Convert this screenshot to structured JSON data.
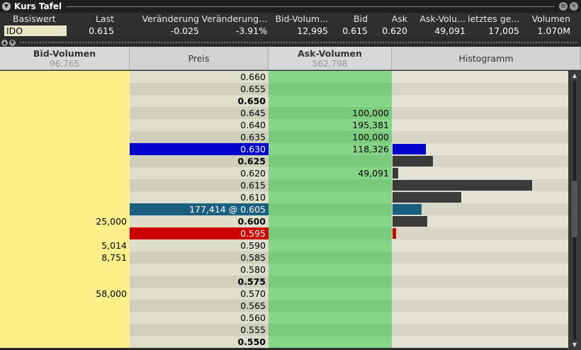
{
  "window": {
    "title": "Kurs Tafel"
  },
  "quote": {
    "headers": [
      "Basiswert",
      "Last",
      "Veränderung",
      "Veränderung...",
      "Bid-Volum...",
      "Bid",
      "Ask",
      "Ask-Volu...",
      "letztes ge...",
      "Volumen"
    ],
    "values": [
      "IDO",
      "0.615",
      "-0.025",
      "-3.91%",
      "12,995",
      "0.615",
      "0.620",
      "49,091",
      "17,005",
      "1.070M"
    ]
  },
  "table": {
    "bid_header": "Bid-Volumen",
    "bid_total": "96,765",
    "price_header": "Preis",
    "ask_header": "Ask-Volumen",
    "ask_total": "562,798",
    "hist_header": "Histogramm"
  },
  "colors": {
    "bid": "#fdf08a",
    "price_a": "#dedecc",
    "price_b": "#cfcfbd",
    "ask_a": "#86d488",
    "ask_b": "#7acb7c",
    "hist_a": "#e4e4d6",
    "hist_b": "#d6d6c8",
    "blue": "#0000cc",
    "teal": "#1a5f80",
    "red": "#cc0000",
    "dark_bar": "#3a3a3a"
  },
  "rows": [
    {
      "bid": "",
      "price": "0.660",
      "ask": "",
      "bold": false,
      "hl": "",
      "hist": 0,
      "bar": ""
    },
    {
      "bid": "",
      "price": "0.655",
      "ask": "",
      "bold": false,
      "hl": "",
      "hist": 0,
      "bar": ""
    },
    {
      "bid": "",
      "price": "0.650",
      "ask": "",
      "bold": true,
      "hl": "",
      "hist": 0,
      "bar": ""
    },
    {
      "bid": "",
      "price": "0.645",
      "ask": "100,000",
      "bold": false,
      "hl": "",
      "hist": 0,
      "bar": ""
    },
    {
      "bid": "",
      "price": "0.640",
      "ask": "195,381",
      "bold": false,
      "hl": "",
      "hist": 0,
      "bar": ""
    },
    {
      "bid": "",
      "price": "0.635",
      "ask": "100,000",
      "bold": false,
      "hl": "",
      "hist": 0,
      "bar": ""
    },
    {
      "bid": "",
      "price": "0.630",
      "ask": "118,326",
      "bold": false,
      "hl": "blue",
      "hist": 0.24,
      "bar": "blue"
    },
    {
      "bid": "",
      "price": "0.625",
      "ask": "",
      "bold": true,
      "hl": "",
      "hist": 0.29,
      "bar": "dark"
    },
    {
      "bid": "",
      "price": "0.620",
      "ask": "49,091",
      "bold": false,
      "hl": "",
      "hist": 0.04,
      "bar": "dark"
    },
    {
      "bid": "",
      "price": "0.615",
      "ask": "",
      "bold": false,
      "hl": "",
      "hist": 1.0,
      "bar": "dark"
    },
    {
      "bid": "",
      "price": "0.610",
      "ask": "",
      "bold": false,
      "hl": "",
      "hist": 0.49,
      "bar": "dark"
    },
    {
      "bid": "",
      "price": "177,414 @ 0.605",
      "ask": "",
      "bold": false,
      "hl": "teal",
      "hist": 0.21,
      "bar": "teal"
    },
    {
      "bid": "25,000",
      "price": "0.600",
      "ask": "",
      "bold": true,
      "hl": "",
      "hist": 0.25,
      "bar": "dark"
    },
    {
      "bid": "",
      "price": "0.595",
      "ask": "",
      "bold": false,
      "hl": "red",
      "hist": 0.025,
      "bar": "red"
    },
    {
      "bid": "5,014",
      "price": "0.590",
      "ask": "",
      "bold": false,
      "hl": "",
      "hist": 0,
      "bar": ""
    },
    {
      "bid": "8,751",
      "price": "0.585",
      "ask": "",
      "bold": false,
      "hl": "",
      "hist": 0,
      "bar": ""
    },
    {
      "bid": "",
      "price": "0.580",
      "ask": "",
      "bold": false,
      "hl": "",
      "hist": 0,
      "bar": ""
    },
    {
      "bid": "",
      "price": "0.575",
      "ask": "",
      "bold": true,
      "hl": "",
      "hist": 0,
      "bar": ""
    },
    {
      "bid": "58,000",
      "price": "0.570",
      "ask": "",
      "bold": false,
      "hl": "",
      "hist": 0,
      "bar": ""
    },
    {
      "bid": "",
      "price": "0.565",
      "ask": "",
      "bold": false,
      "hl": "",
      "hist": 0,
      "bar": ""
    },
    {
      "bid": "",
      "price": "0.560",
      "ask": "",
      "bold": false,
      "hl": "",
      "hist": 0,
      "bar": ""
    },
    {
      "bid": "",
      "price": "0.555",
      "ask": "",
      "bold": false,
      "hl": "",
      "hist": 0,
      "bar": ""
    },
    {
      "bid": "",
      "price": "0.550",
      "ask": "",
      "bold": true,
      "hl": "",
      "hist": 0,
      "bar": ""
    }
  ]
}
